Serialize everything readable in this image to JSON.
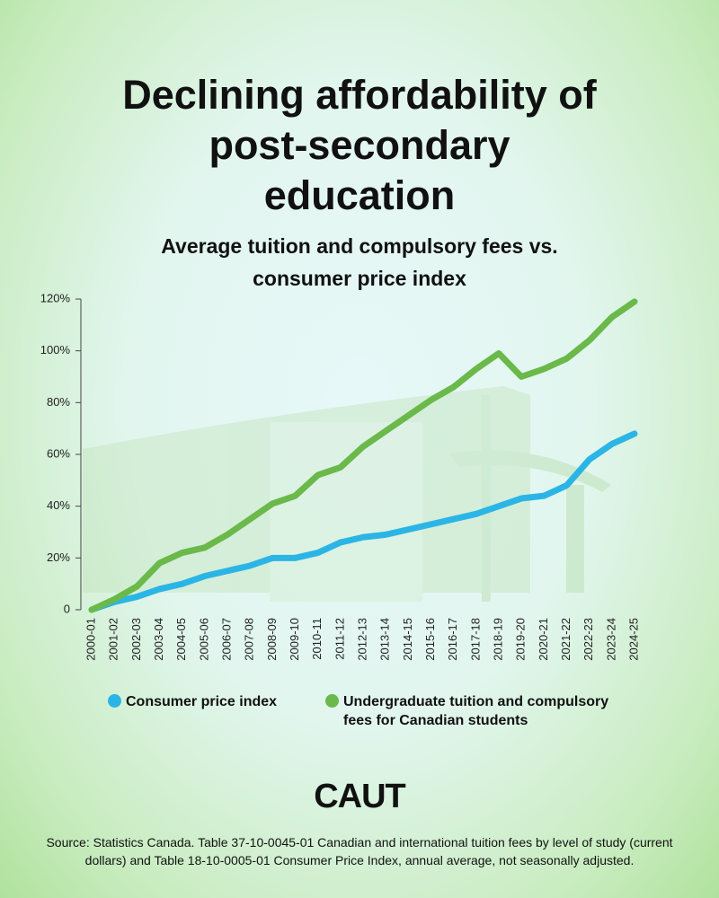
{
  "chart_data": {
    "type": "line",
    "title": "Declining affordability of post-secondary education",
    "subtitle": "Average tuition and compulsory fees vs. consumer price index",
    "categories": [
      "2000-01",
      "2001-02",
      "2002-03",
      "2003-04",
      "2004-05",
      "2005-06",
      "2006-07",
      "2007-08",
      "2008-09",
      "2009-10",
      "2010-11",
      "2011-12",
      "2012-13",
      "2013-14",
      "2014-15",
      "2015-16",
      "2016-17",
      "2017-18",
      "2018-19",
      "2019-20",
      "2020-21",
      "2021-22",
      "2022-23",
      "2023-24",
      "2024-25"
    ],
    "series": [
      {
        "name": "Consumer price index",
        "color": "#2bb5e6",
        "values": [
          0,
          3,
          5,
          8,
          10,
          13,
          15,
          17,
          20,
          20,
          22,
          26,
          28,
          29,
          31,
          33,
          35,
          37,
          40,
          43,
          44,
          48,
          58,
          64,
          68
        ]
      },
      {
        "name": "Undergraduate tuition and compulsory fees for Canadian students",
        "color": "#6ab94a",
        "values": [
          0,
          4,
          9,
          18,
          22,
          24,
          29,
          35,
          41,
          44,
          52,
          55,
          63,
          69,
          75,
          81,
          86,
          93,
          99,
          90,
          93,
          97,
          104,
          113,
          119
        ]
      }
    ],
    "ylim": [
      0,
      120
    ],
    "yticks": [
      0,
      {
        "value": 20,
        "label": "20%"
      },
      {
        "value": 40,
        "label": "40%"
      },
      {
        "value": 60,
        "label": "60%"
      },
      {
        "value": 80,
        "label": "80%"
      },
      {
        "value": 100,
        "label": "100%"
      },
      {
        "value": 120,
        "label": "120%"
      }
    ],
    "grid": false,
    "logo": "CAUT",
    "source": "Source: Statistics Canada. Table 37-10-0045-01 Canadian and international tuition fees by level of study (current dollars) and Table 18-10-0005-01 Consumer Price Index, annual average, not seasonally adjusted."
  }
}
